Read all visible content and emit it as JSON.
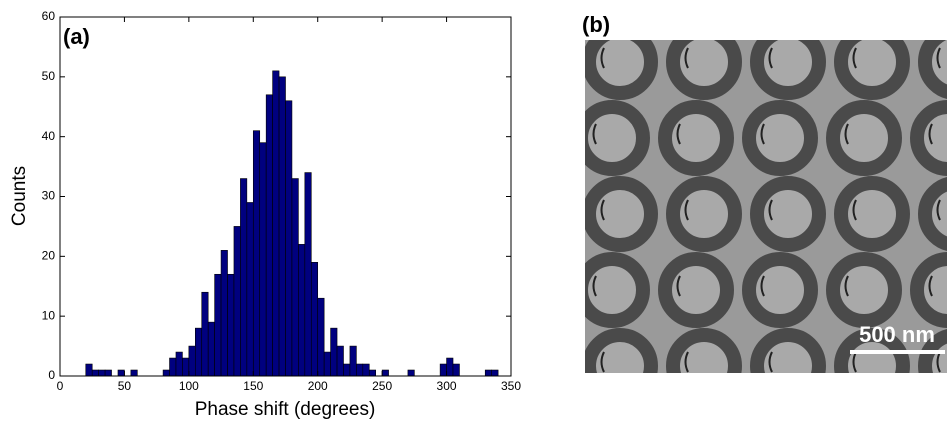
{
  "chart_data": {
    "type": "histogram",
    "panel_label": "(a)",
    "xlabel": "Phase shift (degrees)",
    "ylabel": "Counts",
    "color": "#00007f",
    "bins": [
      20,
      25,
      30,
      35,
      40,
      45,
      50,
      55,
      60,
      65,
      70,
      75,
      80,
      85,
      90,
      95,
      100,
      105,
      110,
      115,
      120,
      125,
      130,
      135,
      140,
      145,
      150,
      155,
      160,
      165,
      170,
      175,
      180,
      185,
      190,
      195,
      200,
      205,
      210,
      215,
      220,
      225,
      230,
      235,
      240,
      245,
      250,
      255,
      260,
      265,
      270,
      275,
      280,
      285,
      290,
      295,
      300,
      305,
      310,
      315,
      320,
      325,
      330,
      335,
      340
    ],
    "values": [
      2,
      1,
      1,
      1,
      0,
      1,
      0,
      1,
      0,
      0,
      0,
      0,
      1,
      3,
      4,
      3,
      5,
      8,
      14,
      9,
      17,
      21,
      17,
      25,
      33,
      29,
      41,
      39,
      47,
      51,
      50,
      46,
      33,
      22,
      34,
      19,
      13,
      4,
      8,
      5,
      2,
      5,
      2,
      2,
      1,
      0,
      1,
      0,
      0,
      0,
      1,
      0,
      0,
      0,
      0,
      2,
      3,
      2,
      0,
      0,
      0,
      0,
      1,
      1
    ],
    "xlim": [
      0,
      350
    ],
    "xticks": [
      0,
      50,
      100,
      150,
      200,
      250,
      300,
      350
    ],
    "ylim": [
      0,
      60
    ],
    "yticks": [
      0,
      10,
      20,
      30,
      40,
      50,
      60
    ]
  },
  "image_panel": {
    "panel_label": "(b)",
    "scale_bar": "500 nm"
  }
}
